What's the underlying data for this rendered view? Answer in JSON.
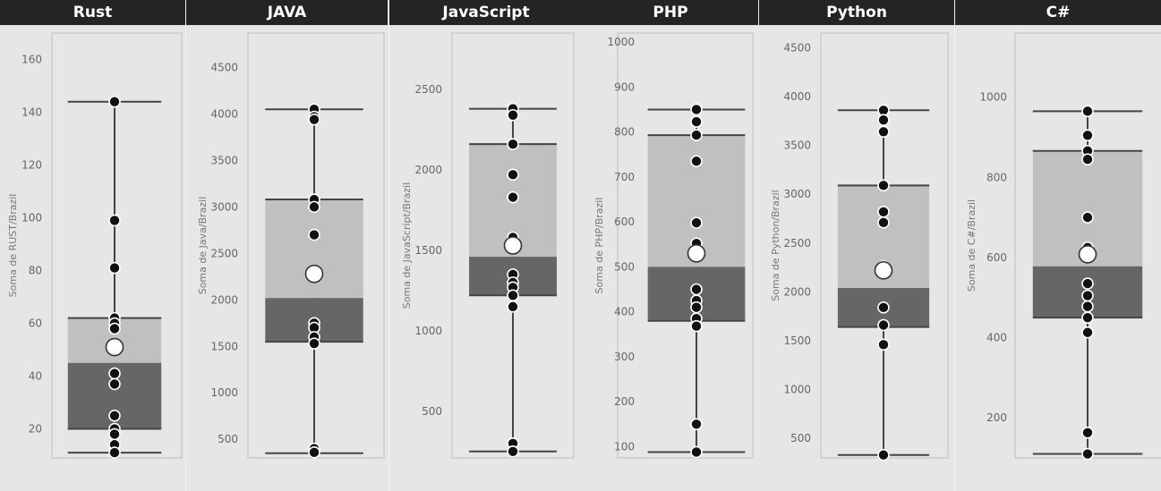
{
  "colors": {
    "header_bg": "#252423",
    "header_text": "#ffffff",
    "background": "#e6e6e6",
    "q3_box": "#c0c0c0",
    "q1_box": "#666666",
    "point": "#111111",
    "mean_marker": "#ffffff",
    "whisker": "#444444"
  },
  "chart_data": [
    {
      "type": "boxplot",
      "title": "Rust",
      "ylabel": "Soma de RUST/Brazil",
      "yticks": [
        20,
        40,
        60,
        80,
        100,
        120,
        140,
        160
      ],
      "ylim": [
        9,
        170
      ],
      "min": 11,
      "q1": 20,
      "median": 45,
      "q3": 62,
      "max": 144,
      "mean": 51,
      "points": [
        144,
        99,
        81,
        62,
        60,
        58,
        41,
        37,
        25,
        20,
        18,
        14,
        11
      ]
    },
    {
      "type": "boxplot",
      "title": "JAVA",
      "ylabel": "Soma de Java/Brazil",
      "yticks": [
        500,
        1000,
        1500,
        2000,
        2500,
        3000,
        3500,
        4000,
        4500
      ],
      "ylim": [
        300,
        4870
      ],
      "min": 350,
      "q1": 1550,
      "median": 2020,
      "q3": 3080,
      "max": 4050,
      "mean": 2280,
      "points": [
        4050,
        3970,
        3940,
        3080,
        3000,
        2700,
        1750,
        1700,
        1600,
        1530,
        400,
        360
      ]
    },
    {
      "type": "boxplot",
      "title": "JavaScript",
      "ylabel": "Soma de JavaScript/Brazil",
      "yticks": [
        500,
        1000,
        1500,
        2000,
        2500
      ],
      "ylim": [
        210,
        2850
      ],
      "min": 250,
      "q1": 1220,
      "median": 1460,
      "q3": 2160,
      "max": 2380,
      "mean": 1530,
      "points": [
        2380,
        2340,
        2160,
        1970,
        1830,
        1580,
        1350,
        1300,
        1270,
        1220,
        1150,
        300,
        250
      ]
    },
    {
      "type": "boxplot",
      "title": "PHP",
      "ylabel": "Soma de PHP/Brazil",
      "yticks": [
        100,
        200,
        300,
        400,
        500,
        600,
        700,
        800,
        900,
        1000
      ],
      "ylim": [
        75,
        1020
      ],
      "min": 88,
      "q1": 380,
      "median": 500,
      "q3": 793,
      "max": 850,
      "mean": 530,
      "points": [
        850,
        823,
        793,
        735,
        598,
        552,
        450,
        425,
        410,
        385,
        368,
        150,
        88
      ]
    },
    {
      "type": "boxplot",
      "title": "Python",
      "ylabel": "Soma de Python/Brazil",
      "yticks": [
        500,
        1000,
        1500,
        2000,
        2500,
        3000,
        3500,
        4000,
        4500
      ],
      "ylim": [
        300,
        4650
      ],
      "min": 330,
      "q1": 1640,
      "median": 2040,
      "q3": 3090,
      "max": 3860,
      "mean": 2220,
      "points": [
        3860,
        3760,
        3640,
        3090,
        2820,
        2710,
        2260,
        1840,
        1660,
        1460,
        330
      ]
    },
    {
      "type": "boxplot",
      "title": "C#",
      "ylabel": "Soma de C#/Brazil",
      "yticks": [
        200,
        400,
        600,
        800,
        1000
      ],
      "ylim": [
        100,
        1160
      ],
      "min": 110,
      "q1": 450,
      "median": 578,
      "q3": 866,
      "max": 965,
      "mean": 608,
      "points": [
        965,
        905,
        866,
        845,
        700,
        625,
        535,
        505,
        478,
        450,
        413,
        163,
        110
      ]
    }
  ]
}
